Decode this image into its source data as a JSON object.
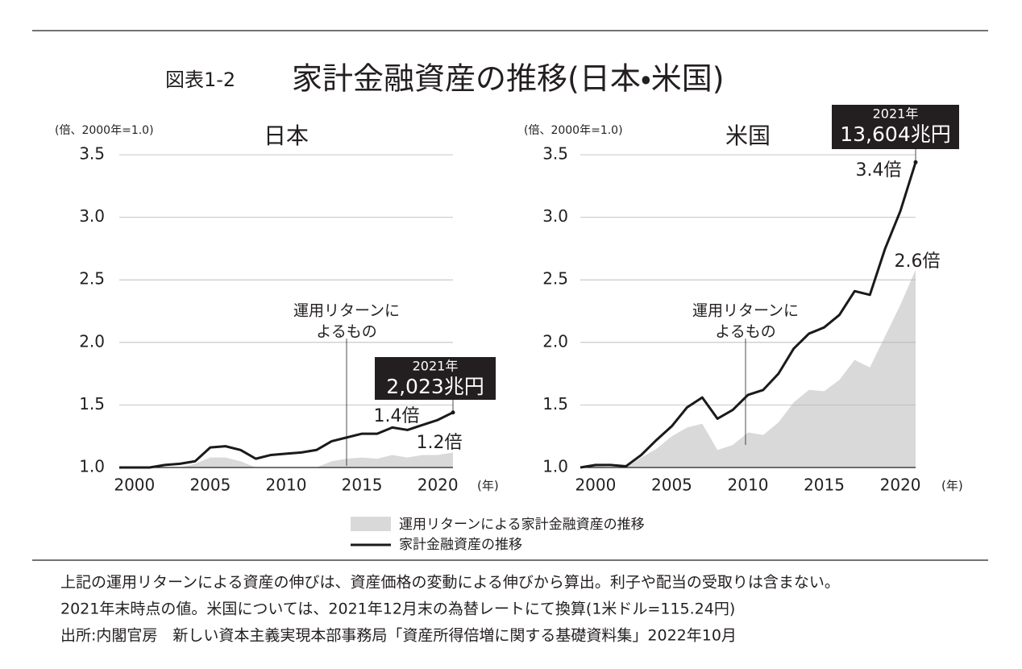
{
  "header": {
    "figure_no": "図表1-2",
    "title": "家計金融資産の推移(日本・米国)"
  },
  "chart_data": [
    {
      "type": "area-line",
      "title": "日本",
      "y_axis_label": "(倍、2000年=1.0)",
      "x_axis_label": "(年)",
      "x": [
        1999,
        2000,
        2001,
        2002,
        2003,
        2004,
        2005,
        2006,
        2007,
        2008,
        2009,
        2010,
        2011,
        2012,
        2013,
        2014,
        2015,
        2016,
        2017,
        2018,
        2019,
        2020,
        2021
      ],
      "series": [
        {
          "name": "運用リターンによる家計金融資産の推移",
          "kind": "area",
          "color": "#d9d9d9",
          "values": [
            1.0,
            1.0,
            1.0,
            1.0,
            1.0,
            1.03,
            1.08,
            1.08,
            1.05,
            1.0,
            1.0,
            1.0,
            1.0,
            1.0,
            1.05,
            1.07,
            1.08,
            1.07,
            1.1,
            1.08,
            1.1,
            1.1,
            1.12
          ]
        },
        {
          "name": "家計金融資産の推移",
          "kind": "line",
          "color": "#1a1a1a",
          "values": [
            1.0,
            1.0,
            1.0,
            1.02,
            1.03,
            1.05,
            1.16,
            1.17,
            1.14,
            1.07,
            1.1,
            1.11,
            1.12,
            1.14,
            1.21,
            1.24,
            1.27,
            1.27,
            1.32,
            1.3,
            1.34,
            1.38,
            1.44
          ]
        }
      ],
      "xlim": [
        1999,
        2021
      ],
      "xticks": [
        2000,
        2005,
        2010,
        2015,
        2020
      ],
      "ylim": [
        1,
        3.5
      ],
      "yticks": [
        {
          "value": 1,
          "label": "1.0"
        },
        1.5,
        {
          "value": 2,
          "label": "2.0"
        },
        2.5,
        {
          "value": 3,
          "label": "3.0"
        },
        3.5
      ],
      "grid": true,
      "annotations": {
        "note": [
          "運用リターンに",
          "よるもの"
        ],
        "end_total": "1.4倍",
        "end_return": "1.2倍",
        "callout_year": "2021年",
        "callout_amount": "2,023兆円"
      }
    },
    {
      "type": "area-line",
      "title": "米国",
      "y_axis_label": "(倍、2000年=1.0)",
      "x_axis_label": "(年)",
      "x": [
        1999,
        2000,
        2001,
        2002,
        2003,
        2004,
        2005,
        2006,
        2007,
        2008,
        2009,
        2010,
        2011,
        2012,
        2013,
        2014,
        2015,
        2016,
        2017,
        2018,
        2019,
        2020,
        2021
      ],
      "series": [
        {
          "kind": "area",
          "color": "#d9d9d9",
          "values": [
            1.0,
            1.01,
            1.0,
            1.0,
            1.08,
            1.15,
            1.25,
            1.32,
            1.35,
            1.14,
            1.18,
            1.28,
            1.26,
            1.36,
            1.52,
            1.62,
            1.61,
            1.7,
            1.86,
            1.8,
            2.05,
            2.3,
            2.58
          ]
        },
        {
          "kind": "line",
          "color": "#1a1a1a",
          "values": [
            1.0,
            1.02,
            1.02,
            1.01,
            1.1,
            1.22,
            1.33,
            1.48,
            1.56,
            1.39,
            1.46,
            1.58,
            1.62,
            1.75,
            1.95,
            2.07,
            2.12,
            2.22,
            2.41,
            2.38,
            2.75,
            3.05,
            3.44
          ]
        }
      ],
      "xlim": [
        1999,
        2021
      ],
      "xticks": [
        2000,
        2005,
        2010,
        2015,
        2020
      ],
      "ylim": [
        1,
        3.5
      ],
      "yticks": [
        {
          "value": 1,
          "label": "1.0"
        },
        1.5,
        {
          "value": 2,
          "label": "2.0"
        },
        2.5,
        {
          "value": 3,
          "label": "3.0"
        },
        3.5
      ],
      "grid": true,
      "annotations": {
        "note": [
          "運用リターンに",
          "よるもの"
        ],
        "end_total": "3.4倍",
        "end_return": "2.6倍",
        "callout_year": "2021年",
        "callout_amount": "13,604兆円"
      }
    }
  ],
  "notes": [
    "上記の運用リターンによる資産の伸びは、資産価格の変動による伸びから算出。利子や配当の受取りは含まない。",
    "2021年末時点の値。米国については、2021年12月末の為替レートにて換算(1米ドル=115.24円)",
    "出所:内閣官房　新しい資本主義実現本部事務局「資産所得倍増に関する基礎資料集」2022年10月"
  ]
}
